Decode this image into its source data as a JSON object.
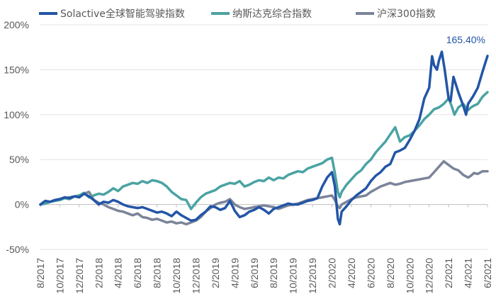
{
  "chart_data": {
    "type": "line",
    "title": "",
    "xlabel": "",
    "ylabel": "",
    "ylim": [
      -50,
      200
    ],
    "y_ticks": [
      "200%",
      "150%",
      "100%",
      "50%",
      "0%",
      "-50%"
    ],
    "y_tick_values": [
      200,
      150,
      100,
      50,
      0,
      -50
    ],
    "x_tick_labels": [
      "8/2017",
      "10/2017",
      "12/2017",
      "2/2018",
      "4/2018",
      "6/2018",
      "8/2018",
      "10/2018",
      "12/2018",
      "2/2019",
      "4/2019",
      "6/2019",
      "8/2019",
      "10/2019",
      "12/2019",
      "2/2020",
      "4/2020",
      "6/2020",
      "8/2020",
      "10/2020",
      "12/2020",
      "2/2021",
      "4/2021",
      "6/2021"
    ],
    "x_tick_values": [
      0,
      2,
      4,
      6,
      8,
      10,
      12,
      14,
      16,
      18,
      20,
      22,
      24,
      26,
      28,
      30,
      32,
      34,
      36,
      38,
      40,
      42,
      44,
      46
    ],
    "x_unit": "months since 8/2017",
    "grid": "horizontal",
    "legend_position": "top",
    "annotation": {
      "text": "165.40%",
      "series": "Solactive全球智能驾驶指数",
      "x": 46,
      "y": 165.4
    },
    "series": [
      {
        "name": "Solactive全球智能驾驶指数",
        "color": "#2355a6",
        "points": [
          [
            0,
            0
          ],
          [
            0.5,
            4
          ],
          [
            1,
            3
          ],
          [
            1.5,
            5
          ],
          [
            2,
            6
          ],
          [
            2.5,
            8
          ],
          [
            3,
            7
          ],
          [
            3.5,
            9
          ],
          [
            4,
            8
          ],
          [
            4.5,
            12
          ],
          [
            5,
            9
          ],
          [
            5.5,
            5
          ],
          [
            6,
            0
          ],
          [
            6.5,
            3
          ],
          [
            7,
            2
          ],
          [
            7.5,
            5
          ],
          [
            8,
            3
          ],
          [
            8.5,
            0
          ],
          [
            9,
            -2
          ],
          [
            9.5,
            -3
          ],
          [
            10,
            -4
          ],
          [
            10.5,
            -3
          ],
          [
            11,
            -5
          ],
          [
            11.5,
            -7
          ],
          [
            12,
            -9
          ],
          [
            12.5,
            -8
          ],
          [
            13,
            -10
          ],
          [
            13.5,
            -13
          ],
          [
            14,
            -8
          ],
          [
            14.5,
            -12
          ],
          [
            15,
            -15
          ],
          [
            15.5,
            -18
          ],
          [
            16,
            -17
          ],
          [
            16.5,
            -12
          ],
          [
            17,
            -8
          ],
          [
            17.5,
            -2
          ],
          [
            18,
            -3
          ],
          [
            18.5,
            -6
          ],
          [
            19,
            -4
          ],
          [
            19.5,
            4
          ],
          [
            20,
            -7
          ],
          [
            20.5,
            -14
          ],
          [
            21,
            -12
          ],
          [
            21.5,
            -8
          ],
          [
            22,
            -6
          ],
          [
            22.5,
            -3
          ],
          [
            23,
            -6
          ],
          [
            23.5,
            -10
          ],
          [
            24,
            -5
          ],
          [
            24.5,
            -3
          ],
          [
            25,
            -1
          ],
          [
            25.5,
            1
          ],
          [
            26,
            0
          ],
          [
            26.5,
            0
          ],
          [
            27,
            2
          ],
          [
            27.5,
            4
          ],
          [
            28,
            5
          ],
          [
            28.5,
            7
          ],
          [
            29,
            20
          ],
          [
            29.5,
            30
          ],
          [
            30,
            36
          ],
          [
            30.3,
            20
          ],
          [
            30.6,
            -16
          ],
          [
            30.8,
            -22
          ],
          [
            31,
            -8
          ],
          [
            31.5,
            -2
          ],
          [
            32,
            5
          ],
          [
            32.5,
            10
          ],
          [
            33,
            14
          ],
          [
            33.5,
            18
          ],
          [
            34,
            26
          ],
          [
            34.5,
            32
          ],
          [
            35,
            36
          ],
          [
            35.5,
            42
          ],
          [
            36,
            45
          ],
          [
            36.5,
            58
          ],
          [
            37,
            60
          ],
          [
            37.5,
            63
          ],
          [
            38,
            72
          ],
          [
            38.5,
            82
          ],
          [
            39,
            95
          ],
          [
            39.5,
            118
          ],
          [
            40,
            130
          ],
          [
            40.3,
            165
          ],
          [
            40.5,
            155
          ],
          [
            40.8,
            150
          ],
          [
            41,
            160
          ],
          [
            41.3,
            170
          ],
          [
            41.6,
            150
          ],
          [
            42,
            118
          ],
          [
            42.2,
            115
          ],
          [
            42.5,
            142
          ],
          [
            43,
            125
          ],
          [
            43.5,
            110
          ],
          [
            43.8,
            100
          ],
          [
            44,
            112
          ],
          [
            44.5,
            120
          ],
          [
            45,
            130
          ],
          [
            45.5,
            148
          ],
          [
            46,
            165.4
          ]
        ]
      },
      {
        "name": "纳斯达克综合指数",
        "color": "#4ba3a3",
        "points": [
          [
            0,
            0
          ],
          [
            0.5,
            1
          ],
          [
            1,
            3
          ],
          [
            1.5,
            4
          ],
          [
            2,
            5
          ],
          [
            2.5,
            7
          ],
          [
            3,
            6
          ],
          [
            3.5,
            9
          ],
          [
            4,
            10
          ],
          [
            4.5,
            13
          ],
          [
            5,
            8
          ],
          [
            5.5,
            10
          ],
          [
            6,
            12
          ],
          [
            6.5,
            11
          ],
          [
            7,
            14
          ],
          [
            7.5,
            18
          ],
          [
            8,
            15
          ],
          [
            8.5,
            20
          ],
          [
            9,
            22
          ],
          [
            9.5,
            24
          ],
          [
            10,
            23
          ],
          [
            10.5,
            26
          ],
          [
            11,
            24
          ],
          [
            11.5,
            27
          ],
          [
            12,
            26
          ],
          [
            12.5,
            24
          ],
          [
            13,
            20
          ],
          [
            13.5,
            14
          ],
          [
            14,
            10
          ],
          [
            14.5,
            6
          ],
          [
            15,
            5
          ],
          [
            15.5,
            -5
          ],
          [
            16,
            2
          ],
          [
            16.5,
            8
          ],
          [
            17,
            12
          ],
          [
            17.5,
            14
          ],
          [
            18,
            16
          ],
          [
            18.5,
            20
          ],
          [
            19,
            22
          ],
          [
            19.5,
            24
          ],
          [
            20,
            23
          ],
          [
            20.5,
            26
          ],
          [
            21,
            20
          ],
          [
            21.5,
            22
          ],
          [
            22,
            25
          ],
          [
            22.5,
            27
          ],
          [
            23,
            26
          ],
          [
            23.5,
            30
          ],
          [
            24,
            27
          ],
          [
            24.5,
            30
          ],
          [
            25,
            29
          ],
          [
            25.5,
            33
          ],
          [
            26,
            35
          ],
          [
            26.5,
            37
          ],
          [
            27,
            36
          ],
          [
            27.5,
            40
          ],
          [
            28,
            42
          ],
          [
            28.5,
            44
          ],
          [
            29,
            46
          ],
          [
            29.5,
            50
          ],
          [
            30,
            52
          ],
          [
            30.3,
            35
          ],
          [
            30.6,
            14
          ],
          [
            30.8,
            8
          ],
          [
            31,
            14
          ],
          [
            31.5,
            22
          ],
          [
            32,
            28
          ],
          [
            32.5,
            34
          ],
          [
            33,
            38
          ],
          [
            33.5,
            45
          ],
          [
            34,
            50
          ],
          [
            34.5,
            58
          ],
          [
            35,
            64
          ],
          [
            35.5,
            70
          ],
          [
            36,
            78
          ],
          [
            36.5,
            86
          ],
          [
            37,
            70
          ],
          [
            37.5,
            75
          ],
          [
            38,
            77
          ],
          [
            38.5,
            82
          ],
          [
            39,
            88
          ],
          [
            39.5,
            95
          ],
          [
            40,
            100
          ],
          [
            40.5,
            106
          ],
          [
            41,
            108
          ],
          [
            41.5,
            112
          ],
          [
            42,
            118
          ],
          [
            42.3,
            110
          ],
          [
            42.6,
            100
          ],
          [
            43,
            108
          ],
          [
            43.5,
            112
          ],
          [
            44,
            105
          ],
          [
            44.3,
            108
          ],
          [
            44.6,
            110
          ],
          [
            45,
            112
          ],
          [
            45.5,
            120
          ],
          [
            46,
            125
          ]
        ]
      },
      {
        "name": "沪深300指数",
        "color": "#7b8499",
        "points": [
          [
            0,
            0
          ],
          [
            0.5,
            1
          ],
          [
            1,
            3
          ],
          [
            1.5,
            5
          ],
          [
            2,
            6
          ],
          [
            2.5,
            7
          ],
          [
            3,
            8
          ],
          [
            3.5,
            9
          ],
          [
            4,
            10
          ],
          [
            4.5,
            12
          ],
          [
            5,
            14
          ],
          [
            5.5,
            5
          ],
          [
            6,
            2
          ],
          [
            6.5,
            0
          ],
          [
            7,
            -3
          ],
          [
            7.5,
            -5
          ],
          [
            8,
            -7
          ],
          [
            8.5,
            -8
          ],
          [
            9,
            -10
          ],
          [
            9.5,
            -12
          ],
          [
            10,
            -10
          ],
          [
            10.5,
            -14
          ],
          [
            11,
            -15
          ],
          [
            11.5,
            -17
          ],
          [
            12,
            -16
          ],
          [
            12.5,
            -18
          ],
          [
            13,
            -20
          ],
          [
            13.5,
            -19
          ],
          [
            14,
            -21
          ],
          [
            14.5,
            -20
          ],
          [
            15,
            -22
          ],
          [
            15.5,
            -20
          ],
          [
            16,
            -18
          ],
          [
            16.5,
            -14
          ],
          [
            17,
            -8
          ],
          [
            17.5,
            -4
          ],
          [
            18,
            0
          ],
          [
            18.5,
            2
          ],
          [
            19,
            3
          ],
          [
            19.5,
            6
          ],
          [
            20,
            0
          ],
          [
            20.5,
            -3
          ],
          [
            21,
            -5
          ],
          [
            21.5,
            -4
          ],
          [
            22,
            -3
          ],
          [
            22.5,
            -2
          ],
          [
            23,
            -1
          ],
          [
            23.5,
            -2
          ],
          [
            24,
            -3
          ],
          [
            24.5,
            -5
          ],
          [
            25,
            -3
          ],
          [
            25.5,
            -1
          ],
          [
            26,
            0
          ],
          [
            26.5,
            1
          ],
          [
            27,
            3
          ],
          [
            27.5,
            5
          ],
          [
            28,
            6
          ],
          [
            28.5,
            7
          ],
          [
            29,
            8
          ],
          [
            29.5,
            9
          ],
          [
            30,
            10
          ],
          [
            30.3,
            5
          ],
          [
            30.6,
            -2
          ],
          [
            30.8,
            -4
          ],
          [
            31,
            0
          ],
          [
            31.5,
            3
          ],
          [
            32,
            6
          ],
          [
            32.5,
            8
          ],
          [
            33,
            9
          ],
          [
            33.5,
            10
          ],
          [
            34,
            14
          ],
          [
            34.5,
            17
          ],
          [
            35,
            20
          ],
          [
            35.5,
            22
          ],
          [
            36,
            24
          ],
          [
            36.5,
            22
          ],
          [
            37,
            23
          ],
          [
            37.5,
            25
          ],
          [
            38,
            26
          ],
          [
            38.5,
            27
          ],
          [
            39,
            28
          ],
          [
            39.5,
            29
          ],
          [
            40,
            30
          ],
          [
            40.5,
            36
          ],
          [
            41,
            42
          ],
          [
            41.5,
            48
          ],
          [
            42,
            44
          ],
          [
            42.5,
            40
          ],
          [
            43,
            38
          ],
          [
            43.5,
            33
          ],
          [
            44,
            30
          ],
          [
            44.3,
            32
          ],
          [
            44.6,
            35
          ],
          [
            45,
            34
          ],
          [
            45.5,
            37
          ],
          [
            46,
            37
          ]
        ]
      }
    ]
  }
}
